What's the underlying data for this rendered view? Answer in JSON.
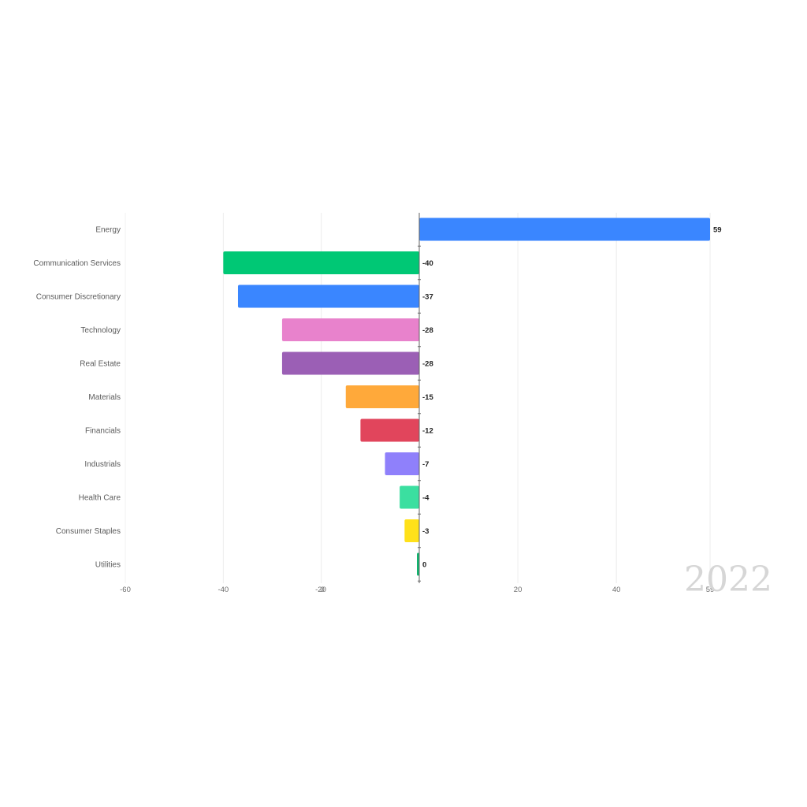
{
  "chart_data": {
    "type": "bar",
    "orientation": "horizontal",
    "annotation": "2022",
    "categories": [
      "Energy",
      "Communication Services",
      "Consumer Discretionary",
      "Technology",
      "Real Estate",
      "Materials",
      "Financials",
      "Industrials",
      "Health Care",
      "Consumer Staples",
      "Utilities"
    ],
    "values": [
      59,
      -40,
      -37,
      -28,
      -28,
      -15,
      -12,
      -7,
      -4,
      -3,
      0
    ],
    "value_labels": [
      "59",
      "-40",
      "-37",
      "-28",
      "-28",
      "-15",
      "-12",
      "-7",
      "-4",
      "-3",
      "0"
    ],
    "colors": [
      "#3a86ff",
      "#00c875",
      "#3a86ff",
      "#e882cc",
      "#9b5fb5",
      "#ffa93a",
      "#e1455c",
      "#8f80fb",
      "#3bdfa0",
      "#ffe11a",
      "#10b56e"
    ],
    "negative_axis": {
      "range": [
        -60,
        0
      ],
      "ticks": [
        -60,
        -40,
        -20,
        0
      ],
      "tick_labels": [
        "-60",
        "-40",
        "-20",
        "0"
      ]
    },
    "positive_axis": {
      "range": [
        0,
        59
      ],
      "ticks": [
        20,
        40,
        59
      ],
      "tick_labels": [
        "20",
        "40",
        "59"
      ]
    },
    "grid": true,
    "legend": "none"
  }
}
